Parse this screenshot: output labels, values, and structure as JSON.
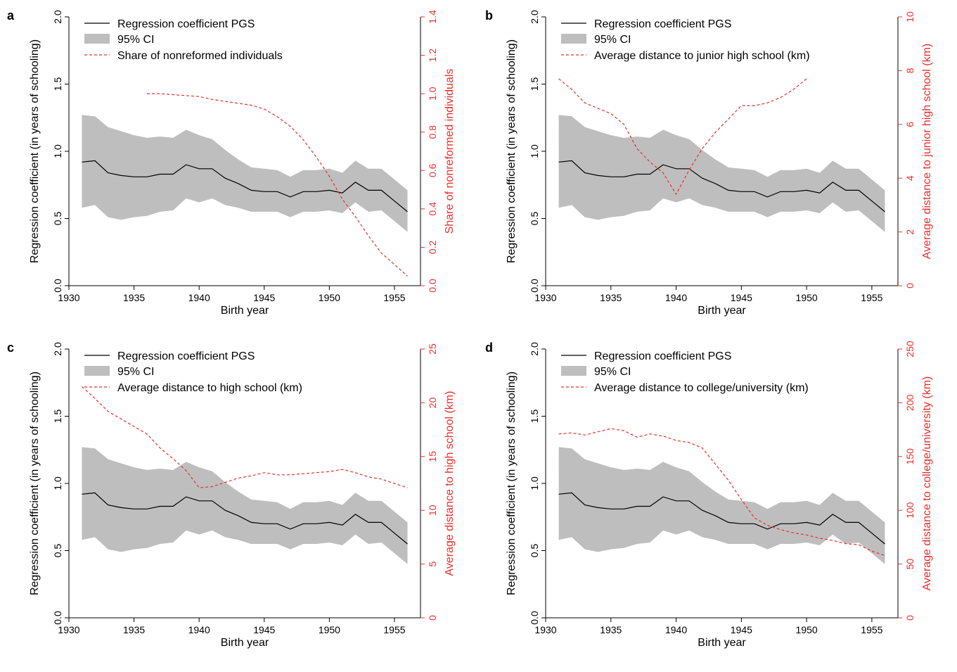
{
  "chart_data": [
    {
      "panel_label": "a",
      "type": "line",
      "xlabel": "Birth year",
      "ylabel": "Regression coefficient (in years of schooling)",
      "y2label": "Share of nonreformed individuals",
      "xlim": [
        1930,
        1957
      ],
      "xticks": [
        "1930",
        "1935",
        "1940",
        "1945",
        "1950",
        "1955"
      ],
      "ylim": [
        0,
        2.0
      ],
      "yticks": [
        "0.0",
        "0.5",
        "1.0",
        "1.5",
        "2.0"
      ],
      "y2lim": [
        0,
        1.4
      ],
      "y2ticks": [
        "0.0",
        "0.2",
        "0.4",
        "0.6",
        "0.8",
        "1.0",
        "1.2",
        "1.4"
      ],
      "legend": [
        "Regression coefficient PGS",
        "95% CI",
        "Share of nonreformed individuals"
      ],
      "legend_position": "top-left",
      "grid": false,
      "series": [
        {
          "name": "Regression coefficient PGS",
          "axis": "left",
          "style": "solid",
          "color": "#000000",
          "x": [
            1931,
            1932,
            1933,
            1934,
            1935,
            1936,
            1937,
            1938,
            1939,
            1940,
            1941,
            1942,
            1943,
            1944,
            1945,
            1946,
            1947,
            1948,
            1949,
            1950,
            1951,
            1952,
            1953,
            1954,
            1955,
            1956
          ],
          "values": [
            0.92,
            0.93,
            0.84,
            0.82,
            0.81,
            0.81,
            0.83,
            0.83,
            0.9,
            0.87,
            0.87,
            0.8,
            0.76,
            0.71,
            0.7,
            0.7,
            0.66,
            0.7,
            0.7,
            0.71,
            0.69,
            0.77,
            0.71,
            0.71,
            0.63,
            0.55
          ]
        },
        {
          "name": "95% CI",
          "axis": "left",
          "style": "band",
          "color": "#bebebe",
          "x": [
            1931,
            1932,
            1933,
            1934,
            1935,
            1936,
            1937,
            1938,
            1939,
            1940,
            1941,
            1942,
            1943,
            1944,
            1945,
            1946,
            1947,
            1948,
            1949,
            1950,
            1951,
            1952,
            1953,
            1954,
            1955,
            1956
          ],
          "upper": [
            1.27,
            1.26,
            1.18,
            1.15,
            1.12,
            1.1,
            1.11,
            1.1,
            1.16,
            1.12,
            1.09,
            1.01,
            0.94,
            0.88,
            0.87,
            0.86,
            0.81,
            0.86,
            0.86,
            0.87,
            0.84,
            0.93,
            0.87,
            0.87,
            0.79,
            0.71
          ],
          "lower": [
            0.58,
            0.6,
            0.51,
            0.49,
            0.51,
            0.52,
            0.55,
            0.56,
            0.65,
            0.62,
            0.65,
            0.6,
            0.58,
            0.55,
            0.55,
            0.55,
            0.51,
            0.55,
            0.55,
            0.56,
            0.54,
            0.62,
            0.55,
            0.56,
            0.48,
            0.4
          ]
        },
        {
          "name": "Share of nonreformed individuals",
          "axis": "right",
          "style": "dashed",
          "color": "#e8302a",
          "x": [
            1936,
            1937,
            1938,
            1939,
            1940,
            1941,
            1942,
            1943,
            1944,
            1945,
            1946,
            1947,
            1948,
            1949,
            1950,
            1951,
            1952,
            1953,
            1954,
            1955,
            1956
          ],
          "values": [
            1.0,
            1.0,
            0.995,
            0.99,
            0.985,
            0.97,
            0.96,
            0.95,
            0.94,
            0.92,
            0.88,
            0.83,
            0.76,
            0.67,
            0.57,
            0.45,
            0.36,
            0.26,
            0.17,
            0.11,
            0.05
          ]
        }
      ]
    },
    {
      "panel_label": "b",
      "type": "line",
      "xlabel": "Birth year",
      "ylabel": "Regression coefficient (in years of schooling)",
      "y2label": "Average distance to junior high school (km)",
      "xlim": [
        1930,
        1957
      ],
      "xticks": [
        "1930",
        "1935",
        "1940",
        "1945",
        "1950",
        "1955"
      ],
      "ylim": [
        0,
        2.0
      ],
      "yticks": [
        "0.0",
        "0.5",
        "1.0",
        "1.5",
        "2.0"
      ],
      "y2lim": [
        0,
        10
      ],
      "y2ticks": [
        "0",
        "2",
        "4",
        "6",
        "8",
        "10"
      ],
      "legend": [
        "Regression coefficient PGS",
        "95% CI",
        "Average distance to junior high school (km)"
      ],
      "legend_position": "top-left",
      "grid": false,
      "series": [
        {
          "name": "Regression coefficient PGS",
          "axis": "left",
          "style": "solid",
          "color": "#000000",
          "x": [
            1931,
            1932,
            1933,
            1934,
            1935,
            1936,
            1937,
            1938,
            1939,
            1940,
            1941,
            1942,
            1943,
            1944,
            1945,
            1946,
            1947,
            1948,
            1949,
            1950,
            1951,
            1952,
            1953,
            1954,
            1955,
            1956
          ],
          "values": [
            0.92,
            0.93,
            0.84,
            0.82,
            0.81,
            0.81,
            0.83,
            0.83,
            0.9,
            0.87,
            0.87,
            0.8,
            0.76,
            0.71,
            0.7,
            0.7,
            0.66,
            0.7,
            0.7,
            0.71,
            0.69,
            0.77,
            0.71,
            0.71,
            0.63,
            0.55
          ]
        },
        {
          "name": "95% CI",
          "axis": "left",
          "style": "band",
          "color": "#bebebe",
          "x": [
            1931,
            1932,
            1933,
            1934,
            1935,
            1936,
            1937,
            1938,
            1939,
            1940,
            1941,
            1942,
            1943,
            1944,
            1945,
            1946,
            1947,
            1948,
            1949,
            1950,
            1951,
            1952,
            1953,
            1954,
            1955,
            1956
          ],
          "upper": [
            1.27,
            1.26,
            1.18,
            1.15,
            1.12,
            1.1,
            1.11,
            1.1,
            1.16,
            1.12,
            1.09,
            1.01,
            0.94,
            0.88,
            0.87,
            0.86,
            0.81,
            0.86,
            0.86,
            0.87,
            0.84,
            0.93,
            0.87,
            0.87,
            0.79,
            0.71
          ],
          "lower": [
            0.58,
            0.6,
            0.51,
            0.49,
            0.51,
            0.52,
            0.55,
            0.56,
            0.65,
            0.62,
            0.65,
            0.6,
            0.58,
            0.55,
            0.55,
            0.55,
            0.51,
            0.55,
            0.55,
            0.56,
            0.54,
            0.62,
            0.55,
            0.56,
            0.48,
            0.4
          ]
        },
        {
          "name": "Average distance to junior high school (km)",
          "axis": "right",
          "style": "dashed",
          "color": "#e8302a",
          "x": [
            1931,
            1932,
            1933,
            1934,
            1935,
            1936,
            1937,
            1938,
            1939,
            1940,
            1941,
            1942,
            1943,
            1944,
            1945,
            1946,
            1947,
            1948,
            1949,
            1950
          ],
          "values": [
            7.7,
            7.3,
            6.8,
            6.6,
            6.4,
            6.0,
            5.1,
            4.6,
            4.2,
            3.4,
            4.3,
            5.1,
            5.7,
            6.2,
            6.7,
            6.7,
            6.8,
            7.0,
            7.3,
            7.7
          ]
        }
      ]
    },
    {
      "panel_label": "c",
      "type": "line",
      "xlabel": "Birth year",
      "ylabel": "Regression coefficient (in years of schooling)",
      "y2label": "Average distance to high school (km)",
      "xlim": [
        1930,
        1957
      ],
      "xticks": [
        "1930",
        "1935",
        "1940",
        "1945",
        "1950",
        "1955"
      ],
      "ylim": [
        0,
        2.0
      ],
      "yticks": [
        "0.0",
        "0.5",
        "1.0",
        "1.5",
        "2.0"
      ],
      "y2lim": [
        0,
        25
      ],
      "y2ticks": [
        "0",
        "5",
        "10",
        "15",
        "20",
        "25"
      ],
      "legend": [
        "Regression coefficient PGS",
        "95% CI",
        "Average distance to high school (km)"
      ],
      "legend_position": "top-left",
      "grid": false,
      "series": [
        {
          "name": "Regression coefficient PGS",
          "axis": "left",
          "style": "solid",
          "color": "#000000",
          "x": [
            1931,
            1932,
            1933,
            1934,
            1935,
            1936,
            1937,
            1938,
            1939,
            1940,
            1941,
            1942,
            1943,
            1944,
            1945,
            1946,
            1947,
            1948,
            1949,
            1950,
            1951,
            1952,
            1953,
            1954,
            1955,
            1956
          ],
          "values": [
            0.92,
            0.93,
            0.84,
            0.82,
            0.81,
            0.81,
            0.83,
            0.83,
            0.9,
            0.87,
            0.87,
            0.8,
            0.76,
            0.71,
            0.7,
            0.7,
            0.66,
            0.7,
            0.7,
            0.71,
            0.69,
            0.77,
            0.71,
            0.71,
            0.63,
            0.55
          ]
        },
        {
          "name": "95% CI",
          "axis": "left",
          "style": "band",
          "color": "#bebebe",
          "x": [
            1931,
            1932,
            1933,
            1934,
            1935,
            1936,
            1937,
            1938,
            1939,
            1940,
            1941,
            1942,
            1943,
            1944,
            1945,
            1946,
            1947,
            1948,
            1949,
            1950,
            1951,
            1952,
            1953,
            1954,
            1955,
            1956
          ],
          "upper": [
            1.27,
            1.26,
            1.18,
            1.15,
            1.12,
            1.1,
            1.11,
            1.1,
            1.16,
            1.12,
            1.09,
            1.01,
            0.94,
            0.88,
            0.87,
            0.86,
            0.81,
            0.86,
            0.86,
            0.87,
            0.84,
            0.93,
            0.87,
            0.87,
            0.79,
            0.71
          ],
          "lower": [
            0.58,
            0.6,
            0.51,
            0.49,
            0.51,
            0.52,
            0.55,
            0.56,
            0.65,
            0.62,
            0.65,
            0.6,
            0.58,
            0.55,
            0.55,
            0.55,
            0.51,
            0.55,
            0.55,
            0.56,
            0.54,
            0.62,
            0.55,
            0.56,
            0.48,
            0.4
          ]
        },
        {
          "name": "Average distance to high school (km)",
          "axis": "right",
          "style": "dashed",
          "color": "#e8302a",
          "x": [
            1931,
            1932,
            1933,
            1934,
            1935,
            1936,
            1937,
            1938,
            1939,
            1940,
            1941,
            1942,
            1943,
            1944,
            1945,
            1946,
            1947,
            1948,
            1949,
            1950,
            1951,
            1952,
            1953,
            1954,
            1955,
            1956
          ],
          "values": [
            21.5,
            20.4,
            19.2,
            18.5,
            17.8,
            17.1,
            15.8,
            14.8,
            13.7,
            12.1,
            12.2,
            12.6,
            13.0,
            13.2,
            13.5,
            13.3,
            13.3,
            13.4,
            13.5,
            13.6,
            13.8,
            13.5,
            13.1,
            12.9,
            12.5,
            12.1
          ]
        }
      ]
    },
    {
      "panel_label": "d",
      "type": "line",
      "xlabel": "Birth year",
      "ylabel": "Regression coefficient (in years of schooling)",
      "y2label": "Average distance to college/university (km)",
      "xlim": [
        1930,
        1957
      ],
      "xticks": [
        "1930",
        "1935",
        "1940",
        "1945",
        "1950",
        "1955"
      ],
      "ylim": [
        0,
        2.0
      ],
      "yticks": [
        "0.0",
        "0.5",
        "1.0",
        "1.5",
        "2.0"
      ],
      "y2lim": [
        0,
        250
      ],
      "y2ticks": [
        "0",
        "50",
        "100",
        "150",
        "200",
        "250"
      ],
      "legend": [
        "Regression coefficient PGS",
        "95% CI",
        "Average distance to college/university (km)"
      ],
      "legend_position": "top-left",
      "grid": false,
      "series": [
        {
          "name": "Regression coefficient PGS",
          "axis": "left",
          "style": "solid",
          "color": "#000000",
          "x": [
            1931,
            1932,
            1933,
            1934,
            1935,
            1936,
            1937,
            1938,
            1939,
            1940,
            1941,
            1942,
            1943,
            1944,
            1945,
            1946,
            1947,
            1948,
            1949,
            1950,
            1951,
            1952,
            1953,
            1954,
            1955,
            1956
          ],
          "values": [
            0.92,
            0.93,
            0.84,
            0.82,
            0.81,
            0.81,
            0.83,
            0.83,
            0.9,
            0.87,
            0.87,
            0.8,
            0.76,
            0.71,
            0.7,
            0.7,
            0.66,
            0.7,
            0.7,
            0.71,
            0.69,
            0.77,
            0.71,
            0.71,
            0.63,
            0.55
          ]
        },
        {
          "name": "95% CI",
          "axis": "left",
          "style": "band",
          "color": "#bebebe",
          "x": [
            1931,
            1932,
            1933,
            1934,
            1935,
            1936,
            1937,
            1938,
            1939,
            1940,
            1941,
            1942,
            1943,
            1944,
            1945,
            1946,
            1947,
            1948,
            1949,
            1950,
            1951,
            1952,
            1953,
            1954,
            1955,
            1956
          ],
          "upper": [
            1.27,
            1.26,
            1.18,
            1.15,
            1.12,
            1.1,
            1.11,
            1.1,
            1.16,
            1.12,
            1.09,
            1.01,
            0.94,
            0.88,
            0.87,
            0.86,
            0.81,
            0.86,
            0.86,
            0.87,
            0.84,
            0.93,
            0.87,
            0.87,
            0.79,
            0.71
          ],
          "lower": [
            0.58,
            0.6,
            0.51,
            0.49,
            0.51,
            0.52,
            0.55,
            0.56,
            0.65,
            0.62,
            0.65,
            0.6,
            0.58,
            0.55,
            0.55,
            0.55,
            0.51,
            0.55,
            0.55,
            0.56,
            0.54,
            0.62,
            0.55,
            0.56,
            0.48,
            0.4
          ]
        },
        {
          "name": "Average distance to college/university (km)",
          "axis": "right",
          "style": "dashed",
          "color": "#e8302a",
          "x": [
            1931,
            1932,
            1933,
            1934,
            1935,
            1936,
            1937,
            1938,
            1939,
            1940,
            1941,
            1942,
            1943,
            1944,
            1945,
            1946,
            1947,
            1948,
            1949,
            1950,
            1951,
            1952,
            1953,
            1954,
            1955,
            1956
          ],
          "values": [
            171,
            172,
            170,
            173,
            176,
            174,
            168,
            171,
            169,
            165,
            163,
            158,
            143,
            128,
            110,
            93,
            86,
            82,
            79,
            77,
            74,
            72,
            69,
            68,
            62,
            58
          ]
        }
      ]
    }
  ]
}
